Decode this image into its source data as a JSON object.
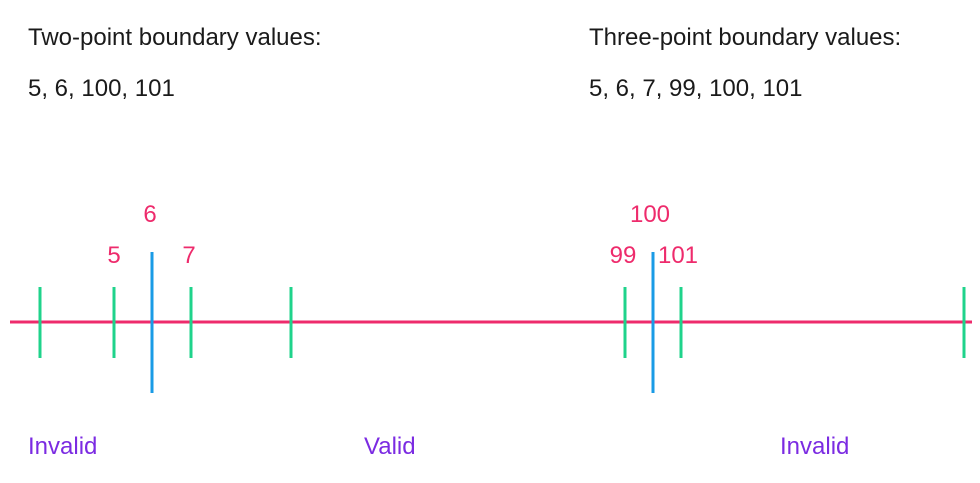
{
  "two_point": {
    "heading": "Two-point boundary values:",
    "values": "5, 6, 100, 101"
  },
  "three_point": {
    "heading": "Three-point boundary values:",
    "values": "5, 6, 7, 99, 100, 101"
  },
  "regions": [
    {
      "label": "Invalid"
    },
    {
      "label": "Valid"
    },
    {
      "label": "Invalid"
    }
  ],
  "colors": {
    "axis": "#ee2b6c",
    "range_tick": "#1fd38b",
    "boundary_tick": "#1a9be6",
    "tick_label": "#ee2b6c",
    "region_label": "#7b2be2",
    "text": "#1a1a1a"
  },
  "diagram": {
    "ticks": [
      {
        "kind": "range",
        "label": ""
      },
      {
        "kind": "range",
        "label": "5"
      },
      {
        "kind": "boundary",
        "label": "6"
      },
      {
        "kind": "range",
        "label": "7"
      },
      {
        "kind": "range",
        "label": ""
      },
      {
        "kind": "range",
        "label": "99"
      },
      {
        "kind": "boundary",
        "label": "100"
      },
      {
        "kind": "range",
        "label": "101"
      },
      {
        "kind": "range",
        "label": ""
      }
    ]
  }
}
